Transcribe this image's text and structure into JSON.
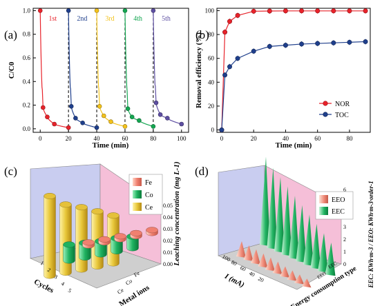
{
  "chart_data": [
    {
      "panel": "(a)",
      "type": "scatter",
      "xlabel": "Time (min)",
      "ylabel": "C/C0",
      "xlim": [
        -5,
        105
      ],
      "ylim": [
        -0.03,
        1.02
      ],
      "xticks": [
        "0",
        "20",
        "40",
        "60",
        "80",
        "100"
      ],
      "yticks": [
        "0.0",
        "0.2",
        "0.4",
        "0.6",
        "0.8",
        "1.0"
      ],
      "separators": [
        20,
        40,
        60,
        80
      ],
      "series": [
        {
          "name": "1st",
          "color": "#e8222a",
          "points": [
            [
              0,
              1.0
            ],
            [
              2,
              0.18
            ],
            [
              5,
              0.1
            ],
            [
              10,
              0.04
            ],
            [
              20,
              0.01
            ]
          ]
        },
        {
          "name": "2nd",
          "color": "#1f3f8c",
          "points": [
            [
              20,
              1.0
            ],
            [
              22,
              0.19
            ],
            [
              25,
              0.09
            ],
            [
              30,
              0.05
            ],
            [
              40,
              0.01
            ]
          ]
        },
        {
          "name": "3rd",
          "color": "#f3c21b",
          "points": [
            [
              40,
              1.0
            ],
            [
              42,
              0.19
            ],
            [
              45,
              0.11
            ],
            [
              50,
              0.06
            ],
            [
              60,
              0.02
            ]
          ]
        },
        {
          "name": "4th",
          "color": "#14a651",
          "points": [
            [
              60,
              1.0
            ],
            [
              62,
              0.17
            ],
            [
              65,
              0.1
            ],
            [
              70,
              0.07
            ],
            [
              80,
              0.02
            ]
          ]
        },
        {
          "name": "5th",
          "color": "#5e4fa2",
          "points": [
            [
              80,
              1.0
            ],
            [
              82,
              0.22
            ],
            [
              85,
              0.12
            ],
            [
              90,
              0.09
            ],
            [
              100,
              0.04
            ]
          ]
        }
      ]
    },
    {
      "panel": "(b)",
      "type": "line",
      "xlabel": "Time (min)",
      "ylabel": "Removal efficiency (%)",
      "xlim": [
        -3,
        93
      ],
      "ylim": [
        -2,
        102
      ],
      "xticks": [
        "0",
        "20",
        "40",
        "60",
        "80"
      ],
      "yticks": [
        "0",
        "20",
        "40",
        "60",
        "80",
        "100"
      ],
      "legend_position": "bottom-right",
      "series": [
        {
          "name": "NOR",
          "color": "#e8222a",
          "x": [
            0,
            2,
            5,
            10,
            20,
            30,
            40,
            50,
            60,
            70,
            80,
            90
          ],
          "y": [
            0,
            82,
            91,
            96,
            99.5,
            99.7,
            99.8,
            99.8,
            99.8,
            99.8,
            99.8,
            99.8
          ]
        },
        {
          "name": "TOC",
          "color": "#1f3f8c",
          "x": [
            0,
            2,
            5,
            10,
            20,
            30,
            40,
            50,
            60,
            70,
            80,
            90
          ],
          "y": [
            0,
            46,
            53,
            60,
            66,
            70,
            71,
            72,
            72.5,
            73,
            73.5,
            74
          ]
        }
      ]
    },
    {
      "panel": "(c)",
      "type": "bar",
      "xlabel": "Cycles",
      "ylabel": "Metal ions",
      "zlabel": "Leaching concentration (mg L-1)",
      "z_ticks": [
        "0.00",
        "0.01",
        "0.02",
        "0.03",
        "0.04",
        "0.05"
      ],
      "categories": [
        "1",
        "2",
        "3",
        "4",
        "5"
      ],
      "legend_position": "top-right",
      "series": [
        {
          "name": "Ce",
          "color": "#e5c13a",
          "values": [
            0.055,
            0.047,
            0.043,
            0.038,
            0.033
          ]
        },
        {
          "name": "Co",
          "color": "#1fb260",
          "values": [
            0.011,
            0.01,
            0.009,
            0.009,
            0.008
          ]
        },
        {
          "name": "Fe",
          "color": "#f08070",
          "values": [
            0.002,
            0.002,
            0.002,
            0.002,
            0.002
          ]
        }
      ]
    },
    {
      "panel": "(d)",
      "type": "area",
      "xlabel": "I (mA)",
      "ylabel": "Energy consumption type",
      "zlabel": "EEC: KWh·m-3 / EEO: KWh·m-3·order-1",
      "x_ticks": [
        "100",
        "80",
        "60",
        "40",
        "20"
      ],
      "z_ticks": [
        "0",
        "1",
        "2",
        "3",
        "4",
        "5",
        "6"
      ],
      "legend_position": "top-right",
      "series": [
        {
          "name": "EEO",
          "color": "#f08070",
          "x": [
            100,
            90,
            80,
            70,
            60,
            50,
            40,
            30,
            20,
            10
          ],
          "values": [
            1.0,
            0.95,
            0.9,
            0.85,
            0.8,
            0.75,
            0.65,
            0.6,
            0.55,
            0.5
          ]
        },
        {
          "name": "EEC",
          "color": "#1fb260",
          "x": [
            100,
            90,
            80,
            70,
            60,
            50,
            40,
            30,
            20,
            10
          ],
          "values": [
            5.8,
            5.3,
            4.9,
            4.5,
            4.1,
            3.7,
            3.3,
            2.9,
            2.5,
            2.1
          ]
        }
      ]
    }
  ]
}
